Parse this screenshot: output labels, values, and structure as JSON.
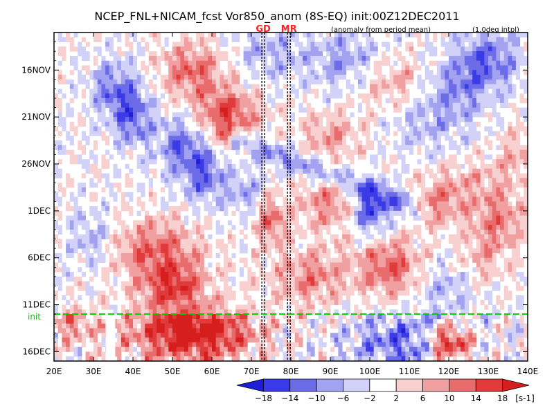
{
  "chart_data": {
    "type": "heatmap",
    "title": "NCEP_FNL+NICAM_fcst Vor850_anom (8S-EQ) init:00Z12DEC2011",
    "subtitle_note": "(anomaly from period mean)",
    "interp_note": "(1.0deg intpl)",
    "x_axis": {
      "labels": [
        "20E",
        "30E",
        "40E",
        "50E",
        "60E",
        "70E",
        "80E",
        "90E",
        "100E",
        "110E",
        "120E",
        "130E",
        "140E"
      ],
      "range": [
        20,
        140
      ]
    },
    "y_axis": {
      "labels": [
        "16NOV",
        "21NOV",
        "26NOV",
        "1DEC",
        "6DEC",
        "11DEC",
        "16DEC"
      ],
      "range_days": [
        0,
        35
      ],
      "day_offsets": [
        4,
        9,
        14,
        19,
        24,
        29,
        34
      ]
    },
    "markers": [
      {
        "label": "GD",
        "lon": 73
      },
      {
        "label": "MR",
        "lon": 79.5
      }
    ],
    "init_line": {
      "label": "init",
      "day": 30.0
    },
    "colorbar": {
      "levels": [
        "-18",
        "-14",
        "-10",
        "-6",
        "-2",
        "2",
        "6",
        "10",
        "14",
        "18"
      ],
      "unit": "[s-1]",
      "colors": [
        "#1e1ed6",
        "#3a3ae6",
        "#6c6ce8",
        "#a2a2f0",
        "#d2d2f8",
        "#ffffff",
        "#f8d0d0",
        "#f0a0a0",
        "#e86c6c",
        "#e03a3a",
        "#d61e1e"
      ]
    }
  }
}
